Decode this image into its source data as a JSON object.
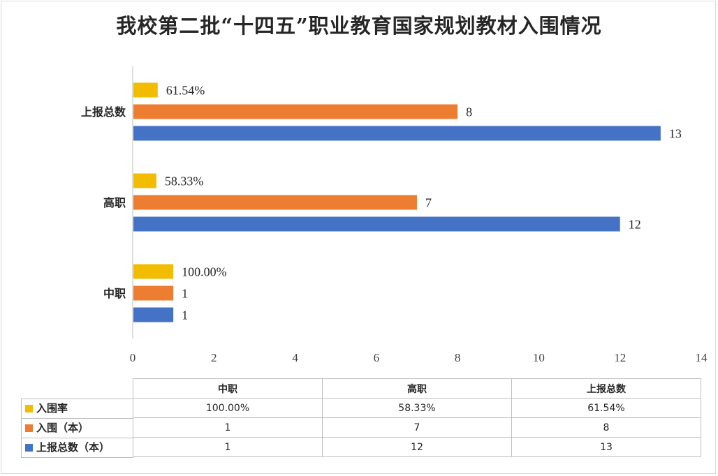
{
  "title": "我校第二批“十四五”职业教育国家规划教材入围情况",
  "chart_data": {
    "type": "bar",
    "orientation": "horizontal",
    "categories": [
      "中职",
      "高职",
      "上报总数"
    ],
    "xlim": [
      0,
      14
    ],
    "x_ticks": [
      "0",
      "2",
      "4",
      "6",
      "8",
      "10",
      "12",
      "14"
    ],
    "grid": false,
    "legend_placement": "bottom-left (data table)",
    "series": [
      {
        "name": "入围率",
        "color": "#F2BC00",
        "values": [
          1.0,
          0.5833,
          0.6154
        ],
        "labels": [
          "100.00%",
          "58.33%",
          "61.54%"
        ]
      },
      {
        "name": "入围（本）",
        "color": "#ED7D31",
        "values": [
          1,
          7,
          8
        ],
        "labels": [
          "1",
          "7",
          "8"
        ]
      },
      {
        "name": "上报总数（本）",
        "color": "#4472C4",
        "values": [
          1,
          12,
          13
        ],
        "labels": [
          "1",
          "12",
          "13"
        ]
      }
    ]
  },
  "table": {
    "headers": [
      "中职",
      "高职",
      "上报总数"
    ],
    "rows": [
      {
        "legend": "入围率",
        "cells": [
          "100.00%",
          "58.33%",
          "61.54%"
        ]
      },
      {
        "legend": "入围（本）",
        "cells": [
          "1",
          "7",
          "8"
        ]
      },
      {
        "legend": "上报总数（本）",
        "cells": [
          "1",
          "12",
          "13"
        ]
      }
    ]
  }
}
